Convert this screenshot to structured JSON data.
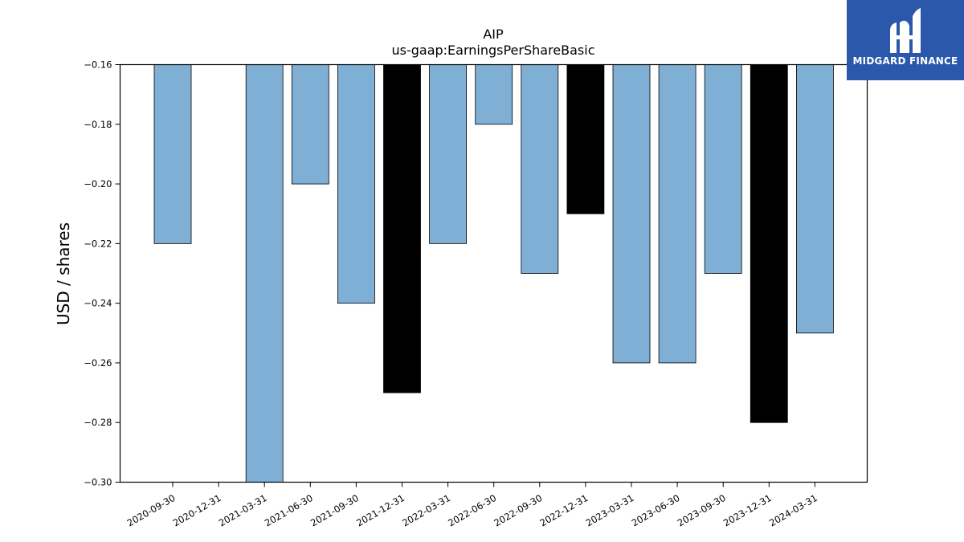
{
  "chart_data": {
    "type": "bar",
    "title": "AIP",
    "subtitle": "us-gaap:EarningsPerShareBasic",
    "xlabel": "",
    "ylabel": "USD / shares",
    "ylim": [
      -0.3,
      -0.16
    ],
    "yticks": [
      "−0.16",
      "−0.18",
      "−0.20",
      "−0.22",
      "−0.24",
      "−0.26",
      "−0.28",
      "−0.30"
    ],
    "ytick_values": [
      -0.16,
      -0.18,
      -0.2,
      -0.22,
      -0.24,
      -0.26,
      -0.28,
      -0.3
    ],
    "categories": [
      "2020-09-30",
      "2020-12-31",
      "2021-03-31",
      "2021-06-30",
      "2021-09-30",
      "2021-12-31",
      "2022-03-31",
      "2022-06-30",
      "2022-09-30",
      "2022-12-31",
      "2023-03-31",
      "2023-06-30",
      "2023-09-30",
      "2023-12-31",
      "2024-03-31"
    ],
    "values": [
      -0.22,
      null,
      -0.3,
      -0.2,
      -0.24,
      -0.27,
      -0.22,
      -0.18,
      -0.23,
      -0.21,
      -0.26,
      -0.26,
      -0.23,
      -0.28,
      -0.25
    ],
    "quarter_end_fiscal_year": [
      false,
      false,
      false,
      false,
      false,
      true,
      false,
      false,
      false,
      true,
      false,
      false,
      false,
      true,
      false
    ],
    "colors": {
      "quarter": "#7fafd4",
      "fiscal_year_end": "#000000",
      "edge": "#000000"
    },
    "grid": false,
    "legend": "none"
  },
  "logo": {
    "text": "MIDGARD FINANCE",
    "background": "#2b58ab"
  }
}
